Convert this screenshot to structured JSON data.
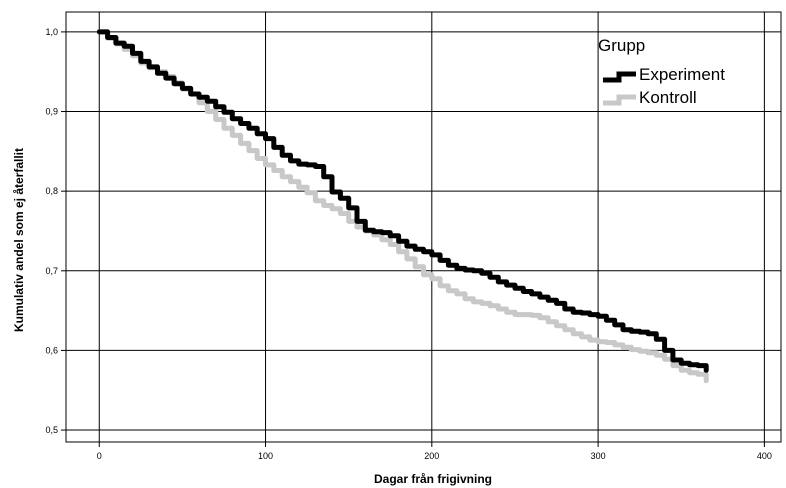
{
  "chart_data": {
    "type": "line",
    "title": "",
    "xlabel": "Dagar från frigivning",
    "ylabel": "Kumulativ andel som ej återfallit",
    "xlim": [
      -20,
      410
    ],
    "ylim": [
      0.485,
      1.025
    ],
    "xticks": [
      0,
      100,
      200,
      300,
      400
    ],
    "yticks": [
      0.5,
      0.6,
      0.7,
      0.8,
      0.9,
      1.0
    ],
    "xtick_labels": [
      "0",
      "100",
      "200",
      "300",
      "400"
    ],
    "ytick_labels": [
      "0,5",
      "0,6",
      "0,7",
      "0,8",
      "0,9",
      "1,0"
    ],
    "grid": true,
    "legend": {
      "title": "Grupp",
      "position": "top-right"
    },
    "series": [
      {
        "name": "Experiment",
        "color": "#000000",
        "points": [
          [
            0,
            1.0
          ],
          [
            5,
            0.993
          ],
          [
            10,
            0.986
          ],
          [
            15,
            0.982
          ],
          [
            20,
            0.973
          ],
          [
            25,
            0.963
          ],
          [
            30,
            0.956
          ],
          [
            35,
            0.948
          ],
          [
            40,
            0.942
          ],
          [
            45,
            0.935
          ],
          [
            50,
            0.929
          ],
          [
            55,
            0.922
          ],
          [
            60,
            0.918
          ],
          [
            65,
            0.913
          ],
          [
            70,
            0.906
          ],
          [
            75,
            0.899
          ],
          [
            80,
            0.891
          ],
          [
            85,
            0.885
          ],
          [
            90,
            0.879
          ],
          [
            95,
            0.872
          ],
          [
            100,
            0.866
          ],
          [
            105,
            0.855
          ],
          [
            110,
            0.845
          ],
          [
            115,
            0.838
          ],
          [
            120,
            0.834
          ],
          [
            125,
            0.833
          ],
          [
            130,
            0.831
          ],
          [
            135,
            0.818
          ],
          [
            140,
            0.799
          ],
          [
            145,
            0.791
          ],
          [
            150,
            0.779
          ],
          [
            155,
            0.762
          ],
          [
            160,
            0.751
          ],
          [
            165,
            0.749
          ],
          [
            170,
            0.748
          ],
          [
            175,
            0.744
          ],
          [
            180,
            0.737
          ],
          [
            185,
            0.731
          ],
          [
            190,
            0.727
          ],
          [
            195,
            0.724
          ],
          [
            200,
            0.72
          ],
          [
            205,
            0.713
          ],
          [
            210,
            0.707
          ],
          [
            215,
            0.703
          ],
          [
            220,
            0.701
          ],
          [
            225,
            0.7
          ],
          [
            230,
            0.697
          ],
          [
            235,
            0.692
          ],
          [
            240,
            0.686
          ],
          [
            245,
            0.682
          ],
          [
            250,
            0.678
          ],
          [
            255,
            0.674
          ],
          [
            260,
            0.671
          ],
          [
            265,
            0.667
          ],
          [
            270,
            0.663
          ],
          [
            275,
            0.659
          ],
          [
            280,
            0.652
          ],
          [
            285,
            0.648
          ],
          [
            290,
            0.647
          ],
          [
            295,
            0.645
          ],
          [
            300,
            0.643
          ],
          [
            305,
            0.638
          ],
          [
            310,
            0.632
          ],
          [
            315,
            0.626
          ],
          [
            320,
            0.624
          ],
          [
            325,
            0.623
          ],
          [
            330,
            0.621
          ],
          [
            335,
            0.614
          ],
          [
            340,
            0.6
          ],
          [
            345,
            0.588
          ],
          [
            350,
            0.584
          ],
          [
            355,
            0.582
          ],
          [
            360,
            0.581
          ],
          [
            365,
            0.575
          ]
        ]
      },
      {
        "name": "Kontroll",
        "color": "#c8c8c8",
        "points": [
          [
            0,
            1.0
          ],
          [
            5,
            0.992
          ],
          [
            10,
            0.985
          ],
          [
            15,
            0.978
          ],
          [
            20,
            0.97
          ],
          [
            25,
            0.961
          ],
          [
            30,
            0.955
          ],
          [
            35,
            0.95
          ],
          [
            40,
            0.944
          ],
          [
            45,
            0.936
          ],
          [
            50,
            0.928
          ],
          [
            55,
            0.922
          ],
          [
            60,
            0.911
          ],
          [
            65,
            0.9
          ],
          [
            70,
            0.89
          ],
          [
            75,
            0.879
          ],
          [
            80,
            0.87
          ],
          [
            85,
            0.86
          ],
          [
            90,
            0.851
          ],
          [
            95,
            0.841
          ],
          [
            100,
            0.833
          ],
          [
            105,
            0.826
          ],
          [
            110,
            0.818
          ],
          [
            115,
            0.812
          ],
          [
            120,
            0.805
          ],
          [
            125,
            0.798
          ],
          [
            130,
            0.788
          ],
          [
            135,
            0.782
          ],
          [
            140,
            0.778
          ],
          [
            145,
            0.772
          ],
          [
            150,
            0.762
          ],
          [
            155,
            0.755
          ],
          [
            160,
            0.75
          ],
          [
            165,
            0.745
          ],
          [
            170,
            0.739
          ],
          [
            175,
            0.733
          ],
          [
            180,
            0.724
          ],
          [
            185,
            0.715
          ],
          [
            190,
            0.705
          ],
          [
            195,
            0.695
          ],
          [
            200,
            0.69
          ],
          [
            205,
            0.681
          ],
          [
            210,
            0.675
          ],
          [
            215,
            0.671
          ],
          [
            220,
            0.665
          ],
          [
            225,
            0.661
          ],
          [
            230,
            0.659
          ],
          [
            235,
            0.656
          ],
          [
            240,
            0.652
          ],
          [
            245,
            0.648
          ],
          [
            250,
            0.645
          ],
          [
            255,
            0.645
          ],
          [
            260,
            0.644
          ],
          [
            265,
            0.641
          ],
          [
            270,
            0.636
          ],
          [
            275,
            0.631
          ],
          [
            280,
            0.626
          ],
          [
            285,
            0.621
          ],
          [
            290,
            0.617
          ],
          [
            295,
            0.613
          ],
          [
            300,
            0.611
          ],
          [
            305,
            0.61
          ],
          [
            310,
            0.607
          ],
          [
            315,
            0.604
          ],
          [
            320,
            0.601
          ],
          [
            325,
            0.599
          ],
          [
            330,
            0.597
          ],
          [
            335,
            0.594
          ],
          [
            340,
            0.589
          ],
          [
            345,
            0.581
          ],
          [
            350,
            0.575
          ],
          [
            355,
            0.572
          ],
          [
            360,
            0.57
          ],
          [
            365,
            0.562
          ]
        ]
      }
    ]
  }
}
